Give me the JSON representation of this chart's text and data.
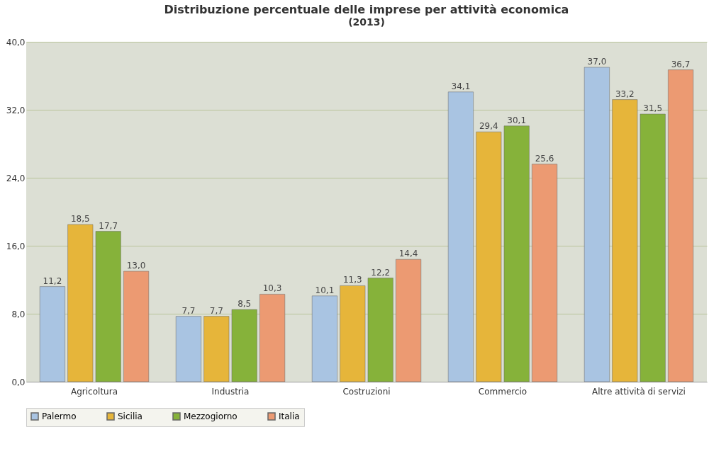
{
  "chart_data": {
    "type": "bar",
    "title": "Distribuzione percentuale delle imprese per attività economica",
    "subtitle": "(2013)",
    "categories": [
      "Agricoltura",
      "Industria",
      "Costruzioni",
      "Commercio",
      "Altre attività di servizi"
    ],
    "series": [
      {
        "name": "Palermo",
        "color": "#a9c4e2",
        "values": [
          11.2,
          7.7,
          10.1,
          34.1,
          37.0
        ],
        "value_labels": [
          "11,2",
          "7,7",
          "10,1",
          "34,1",
          "37,0"
        ]
      },
      {
        "name": "Sicilia",
        "color": "#e6b53a",
        "values": [
          18.5,
          7.7,
          11.3,
          29.4,
          33.2
        ],
        "value_labels": [
          "18,5",
          "7,7",
          "11,3",
          "29,4",
          "33,2"
        ]
      },
      {
        "name": "Mezzogiorno",
        "color": "#86b23a",
        "values": [
          17.7,
          8.5,
          12.2,
          30.1,
          31.5
        ],
        "value_labels": [
          "17,7",
          "8,5",
          "12,2",
          "30,1",
          "31,5"
        ]
      },
      {
        "name": "Italia",
        "color": "#ec9a72",
        "values": [
          13.0,
          10.3,
          14.4,
          25.6,
          36.7
        ],
        "value_labels": [
          "13,0",
          "10,3",
          "14,4",
          "25,6",
          "36,7"
        ]
      }
    ],
    "ylim": [
      0,
      40
    ],
    "yticks": [
      {
        "value": 0,
        "label": "0,0"
      },
      {
        "value": 8,
        "label": "8,0"
      },
      {
        "value": 16,
        "label": "16,0"
      },
      {
        "value": 24,
        "label": "24,0"
      },
      {
        "value": 32,
        "label": "32,0"
      },
      {
        "value": 40,
        "label": "40,0"
      }
    ],
    "grid": "y",
    "legend": "bottom"
  }
}
